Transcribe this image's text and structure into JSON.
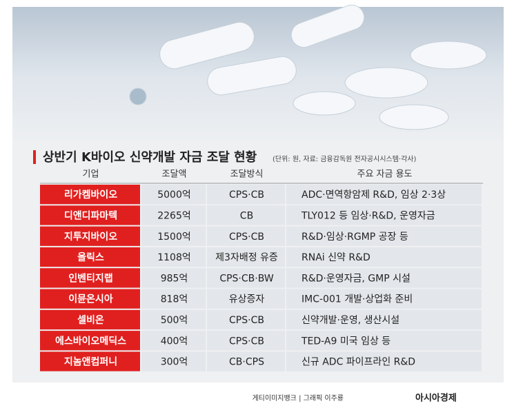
{
  "header": {
    "title": "상반기 K바이오 신약개발 자금 조달 현황",
    "note": "(단위: 원, 자료: 금융감독원 전자공시시스템·각사)"
  },
  "table": {
    "columns": [
      "기업",
      "조달액",
      "조달방식",
      "주요 자금 용도"
    ],
    "rows": [
      [
        "리가켐바이오",
        "5000억",
        "CPS·CB",
        "ADC·면역항암제 R&D, 임상 2·3상"
      ],
      [
        "디앤디파마텍",
        "2265억",
        "CB",
        "TLY012 등 임상·R&D, 운영자금"
      ],
      [
        "지투지바이오",
        "1500억",
        "CPS·CB",
        "R&D·임상·RGMP 공장 등"
      ],
      [
        "올릭스",
        "1108억",
        "제3자배정 유증",
        "RNAi 신약 R&D"
      ],
      [
        "인벤티지랩",
        "985억",
        "CPS·CB·BW",
        "R&D·운영자금, GMP 시설"
      ],
      [
        "이뮨온시아",
        "818억",
        "유상증자",
        "IMC-001 개발·상업화 준비"
      ],
      [
        "셀비온",
        "500억",
        "CPS·CB",
        "신약개발·운영, 생산시설"
      ],
      [
        "에스바이오메딕스",
        "400억",
        "CPS·CB",
        "TED-A9 미국 임상 등"
      ],
      [
        "지놈앤컴퍼니",
        "300억",
        "CB·CPS",
        "신규 ADC 파이프라인 R&D"
      ]
    ]
  },
  "footer": {
    "credit": "게티이미지뱅크  |  그래픽 이주룡",
    "logo": "아시아경제"
  }
}
